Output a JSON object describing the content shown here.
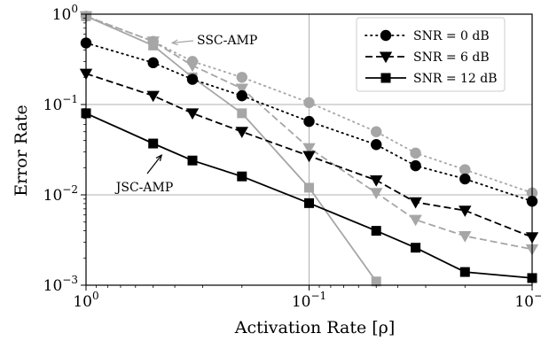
{
  "chart_data": {
    "type": "line",
    "xlabel": "Activation Rate [ρ]",
    "ylabel": "Error Rate",
    "xscale": "log",
    "yscale": "log",
    "x_reversed": true,
    "xlim": [
      1,
      0.01
    ],
    "ylim": [
      0.001,
      1
    ],
    "grid": true,
    "x_ticks": [
      1,
      0.1,
      0.01
    ],
    "x_tick_labels": [
      {
        "base": "10",
        "exp": "0"
      },
      {
        "base": "10",
        "exp": "−1"
      },
      {
        "base": "10",
        "exp": "−2"
      }
    ],
    "y_ticks": [
      1,
      0.1,
      0.01,
      0.001
    ],
    "y_tick_labels": [
      {
        "base": "10",
        "exp": "0"
      },
      {
        "base": "10",
        "exp": "−1"
      },
      {
        "base": "10",
        "exp": "−2"
      },
      {
        "base": "10",
        "exp": "−3"
      }
    ],
    "legend": {
      "placement": "top-right",
      "entries": [
        {
          "label": "SNR = 0 dB",
          "marker": "circle",
          "dash": "dotted"
        },
        {
          "label": "SNR = 6 dB",
          "marker": "triangle-down",
          "dash": "dashed"
        },
        {
          "label": "SNR = 12 dB",
          "marker": "square",
          "dash": "solid"
        }
      ]
    },
    "annotations": [
      {
        "text": "SSC-AMP",
        "color": "#a6a6a6",
        "target_x": 0.48,
        "target_y": 0.48
      },
      {
        "text": "JSC-AMP",
        "color": "#000000",
        "target_x": 0.48,
        "target_y": 0.033
      }
    ],
    "series": [
      {
        "group": "SSC-AMP",
        "snr_db": 0,
        "color": "#a6a6a6",
        "dash": "dotted",
        "marker": "circle",
        "x": [
          1,
          0.5,
          0.3333,
          0.2,
          0.1,
          0.05,
          0.0333,
          0.02,
          0.01
        ],
        "y": [
          0.95,
          0.5,
          0.3,
          0.2,
          0.105,
          0.05,
          0.029,
          0.019,
          0.0105
        ]
      },
      {
        "group": "SSC-AMP",
        "snr_db": 6,
        "color": "#a6a6a6",
        "dash": "dashed",
        "marker": "triangle-down",
        "x": [
          1,
          0.5,
          0.3333,
          0.2,
          0.1,
          0.05,
          0.0333,
          0.02,
          0.01
        ],
        "y": [
          0.95,
          0.5,
          0.27,
          0.15,
          0.033,
          0.0105,
          0.0053,
          0.0035,
          0.0025
        ]
      },
      {
        "group": "SSC-AMP",
        "snr_db": 12,
        "color": "#a6a6a6",
        "dash": "solid",
        "marker": "square",
        "x": [
          1,
          0.5,
          0.3333,
          0.2,
          0.1,
          0.05
        ],
        "y": [
          0.95,
          0.45,
          0.2,
          0.08,
          0.012,
          0.0011
        ]
      },
      {
        "group": "JSC-AMP",
        "snr_db": 0,
        "color": "#000000",
        "dash": "dotted",
        "marker": "circle",
        "x": [
          1,
          0.5,
          0.3333,
          0.2,
          0.1,
          0.05,
          0.0333,
          0.02,
          0.01
        ],
        "y": [
          0.48,
          0.29,
          0.19,
          0.125,
          0.065,
          0.036,
          0.021,
          0.015,
          0.0085
        ]
      },
      {
        "group": "JSC-AMP",
        "snr_db": 6,
        "color": "#000000",
        "dash": "dashed",
        "marker": "triangle-down",
        "x": [
          1,
          0.5,
          0.3333,
          0.2,
          0.1,
          0.05,
          0.0333,
          0.02,
          0.01
        ],
        "y": [
          0.22,
          0.125,
          0.08,
          0.05,
          0.027,
          0.0145,
          0.0083,
          0.0067,
          0.0034
        ]
      },
      {
        "group": "JSC-AMP",
        "snr_db": 12,
        "color": "#000000",
        "dash": "solid",
        "marker": "square",
        "x": [
          1,
          0.5,
          0.3333,
          0.2,
          0.1,
          0.05,
          0.0333,
          0.02,
          0.01
        ],
        "y": [
          0.08,
          0.037,
          0.024,
          0.016,
          0.0081,
          0.004,
          0.0026,
          0.0014,
          0.0012
        ]
      }
    ]
  }
}
